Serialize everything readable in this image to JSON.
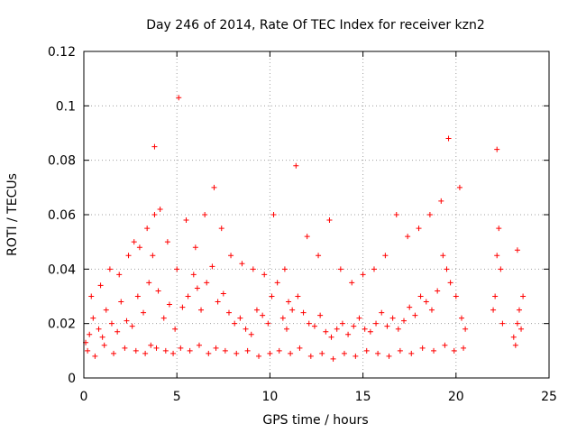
{
  "chart_data": {
    "type": "scatter",
    "title": "Day 246 of 2014, Rate Of TEC Index for receiver kzn2",
    "xlabel": "GPS time / hours",
    "ylabel": "ROTI / TECUs",
    "xlim": [
      0,
      25
    ],
    "ylim": [
      0,
      0.12
    ],
    "xticks": [
      0,
      5,
      10,
      15,
      20,
      25
    ],
    "xtick_labels": [
      "0",
      "5",
      "10",
      "15",
      "20",
      "25"
    ],
    "yticks": [
      0,
      0.02,
      0.04,
      0.06,
      0.08,
      0.1,
      0.12
    ],
    "ytick_labels": [
      "0",
      "0.02",
      "0.04",
      "0.06",
      "0.08",
      "0.1",
      "0.12"
    ],
    "grid": true,
    "marker": "+",
    "color": "#ff0000",
    "series": [
      {
        "name": "ROTI",
        "x": [
          0.1,
          0.3,
          0.5,
          0.8,
          1.0,
          1.2,
          1.5,
          1.8,
          2.0,
          2.3,
          2.6,
          2.9,
          3.2,
          3.5,
          3.7,
          3.8,
          4.0,
          4.3,
          4.6,
          4.9,
          5.0,
          5.3,
          5.6,
          5.9,
          6.1,
          6.3,
          6.6,
          6.9,
          7.2,
          7.5,
          7.8,
          8.1,
          8.4,
          8.7,
          9.0,
          9.3,
          9.6,
          9.9,
          10.1,
          10.4,
          10.7,
          10.9,
          11.0,
          11.2,
          11.5,
          11.8,
          12.1,
          12.4,
          12.7,
          13.0,
          13.3,
          13.6,
          13.9,
          14.2,
          14.5,
          14.8,
          15.1,
          15.4,
          15.7,
          16.0,
          16.3,
          16.6,
          16.9,
          17.2,
          17.5,
          17.8,
          18.1,
          18.4,
          18.7,
          19.0,
          19.3,
          19.5,
          19.7,
          20.0,
          20.3,
          20.5,
          22.0,
          22.1,
          22.2,
          22.3,
          22.4,
          22.5,
          23.1,
          23.2,
          23.3,
          23.4,
          23.5,
          23.6,
          0.2,
          0.6,
          1.1,
          1.6,
          2.2,
          2.8,
          3.3,
          3.6,
          3.9,
          4.4,
          4.8,
          5.2,
          5.7,
          6.2,
          6.7,
          7.1,
          7.6,
          8.2,
          8.8,
          9.4,
          10.0,
          10.5,
          11.1,
          11.6,
          12.2,
          12.8,
          13.4,
          14.0,
          14.6,
          15.2,
          15.8,
          16.4,
          17.0,
          17.6,
          18.2,
          18.8,
          19.4,
          19.9,
          20.4,
          0.4,
          0.9,
          1.4,
          1.9,
          2.4,
          2.7,
          3.0,
          3.4,
          3.8,
          4.1,
          4.5,
          5.1,
          5.5,
          6.0,
          6.5,
          7.0,
          7.4,
          7.9,
          8.5,
          9.1,
          9.7,
          10.2,
          10.8,
          11.4,
          12.0,
          12.6,
          13.2,
          13.8,
          14.4,
          15.0,
          15.6,
          16.2,
          16.8,
          17.4,
          18.0,
          18.6,
          19.2,
          19.6,
          20.2,
          22.2,
          23.3
        ],
        "y": [
          0.013,
          0.016,
          0.022,
          0.018,
          0.015,
          0.025,
          0.02,
          0.017,
          0.028,
          0.021,
          0.019,
          0.03,
          0.024,
          0.035,
          0.045,
          0.06,
          0.032,
          0.022,
          0.027,
          0.018,
          0.04,
          0.026,
          0.03,
          0.038,
          0.033,
          0.025,
          0.035,
          0.041,
          0.028,
          0.031,
          0.024,
          0.02,
          0.022,
          0.018,
          0.016,
          0.025,
          0.023,
          0.02,
          0.03,
          0.035,
          0.022,
          0.018,
          0.028,
          0.025,
          0.03,
          0.024,
          0.02,
          0.019,
          0.023,
          0.017,
          0.015,
          0.018,
          0.02,
          0.016,
          0.019,
          0.022,
          0.018,
          0.017,
          0.02,
          0.024,
          0.019,
          0.022,
          0.018,
          0.021,
          0.026,
          0.023,
          0.03,
          0.028,
          0.025,
          0.032,
          0.045,
          0.04,
          0.035,
          0.03,
          0.022,
          0.018,
          0.025,
          0.03,
          0.045,
          0.055,
          0.04,
          0.02,
          0.015,
          0.012,
          0.02,
          0.025,
          0.018,
          0.03,
          0.01,
          0.008,
          0.012,
          0.009,
          0.011,
          0.01,
          0.009,
          0.012,
          0.011,
          0.01,
          0.009,
          0.011,
          0.01,
          0.012,
          0.009,
          0.011,
          0.01,
          0.009,
          0.01,
          0.008,
          0.009,
          0.01,
          0.009,
          0.011,
          0.008,
          0.009,
          0.007,
          0.009,
          0.008,
          0.01,
          0.009,
          0.008,
          0.01,
          0.009,
          0.011,
          0.01,
          0.012,
          0.01,
          0.011,
          0.03,
          0.034,
          0.04,
          0.038,
          0.045,
          0.05,
          0.048,
          0.055,
          0.085,
          0.062,
          0.05,
          0.103,
          0.058,
          0.048,
          0.06,
          0.07,
          0.055,
          0.045,
          0.042,
          0.04,
          0.038,
          0.06,
          0.04,
          0.078,
          0.052,
          0.045,
          0.058,
          0.04,
          0.035,
          0.038,
          0.04,
          0.045,
          0.06,
          0.052,
          0.055,
          0.06,
          0.065,
          0.088,
          0.07,
          0.084,
          0.047
        ]
      }
    ]
  }
}
